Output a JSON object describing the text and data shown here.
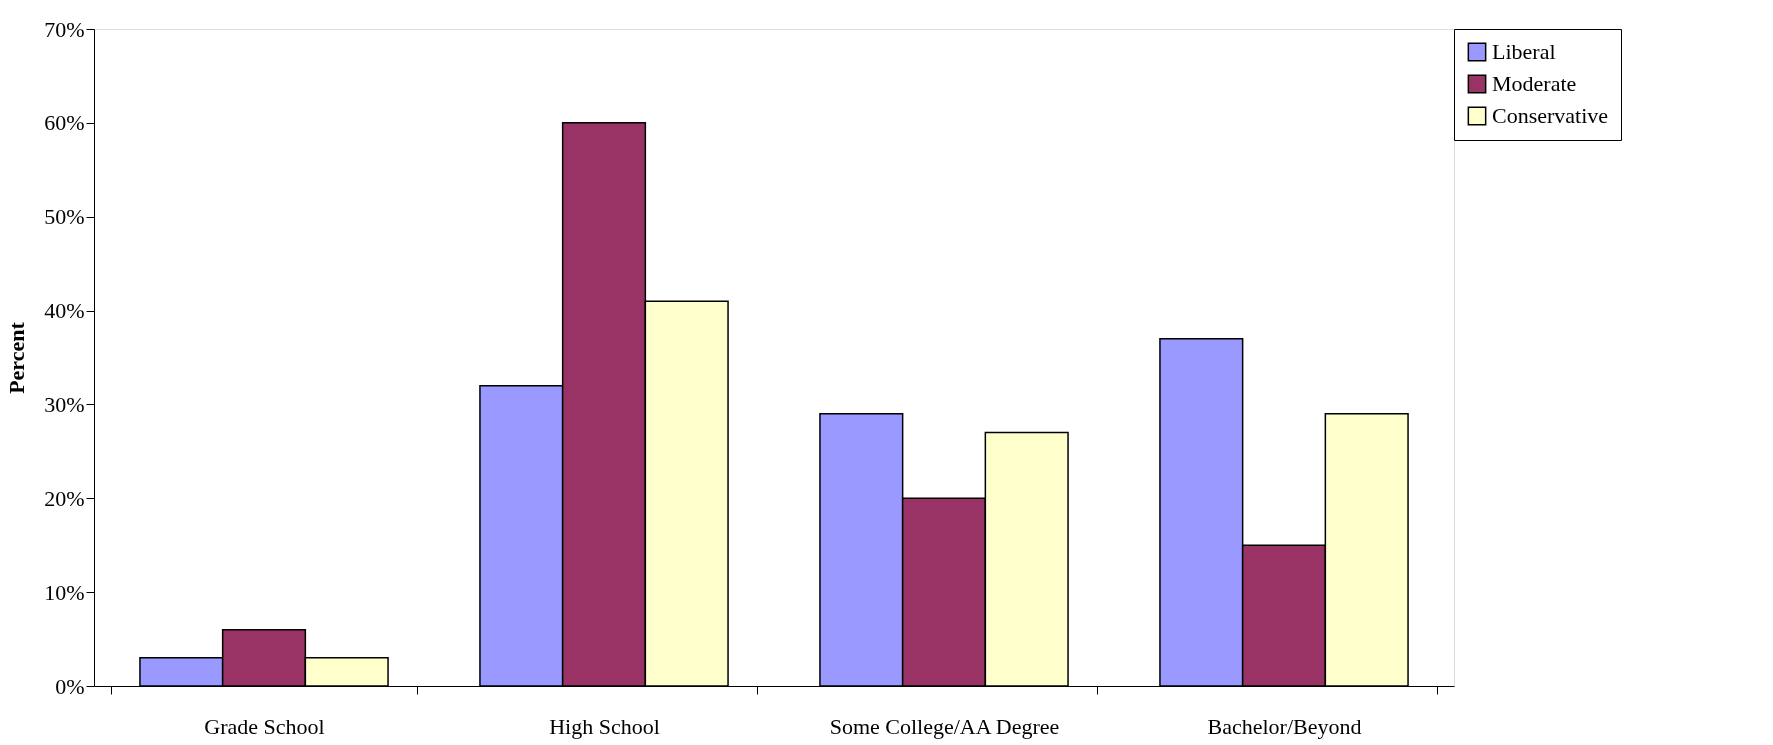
{
  "chart_data": {
    "type": "bar",
    "ylabel": "Percent",
    "categories": [
      "Grade School",
      "High School",
      "Some College/AA Degree",
      "Bachelor/Beyond"
    ],
    "series": [
      {
        "name": "Liberal",
        "color": "#9999ff",
        "values": [
          3,
          32,
          29,
          37
        ]
      },
      {
        "name": "Moderate",
        "color": "#993366",
        "values": [
          6,
          60,
          20,
          15
        ]
      },
      {
        "name": "Conservative",
        "color": "#ffffcc",
        "values": [
          3,
          41,
          27,
          29
        ]
      }
    ],
    "ylim": [
      0,
      70
    ],
    "yticks": [
      {
        "value": 0,
        "label": "0%"
      },
      {
        "value": 10,
        "label": "10%"
      },
      {
        "value": 20,
        "label": "20%"
      },
      {
        "value": 30,
        "label": "30%"
      },
      {
        "value": 40,
        "label": "40%"
      },
      {
        "value": 50,
        "label": "50%"
      },
      {
        "value": 60,
        "label": "60%"
      },
      {
        "value": 70,
        "label": "70%"
      }
    ],
    "grid": false,
    "legend": "right"
  }
}
